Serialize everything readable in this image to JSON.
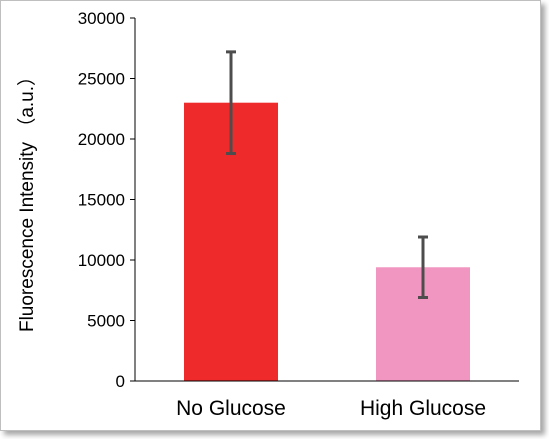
{
  "chart_data": {
    "type": "bar",
    "categories": [
      "No Glucose",
      "High Glucose"
    ],
    "values": [
      23000,
      9400
    ],
    "errors": [
      [
        18800,
        27200
      ],
      [
        6900,
        11900
      ]
    ],
    "ylabel": "Fluorescence Intensity （a.u.）",
    "xlabel": "",
    "ylim": [
      0,
      30000
    ],
    "yticks": [
      0,
      5000,
      10000,
      15000,
      20000,
      25000,
      30000
    ],
    "grid": false,
    "legend": "none",
    "colors": [
      "#ee2a2b",
      "#f196c0"
    ],
    "error_bar_color": "#4d4d4d"
  }
}
